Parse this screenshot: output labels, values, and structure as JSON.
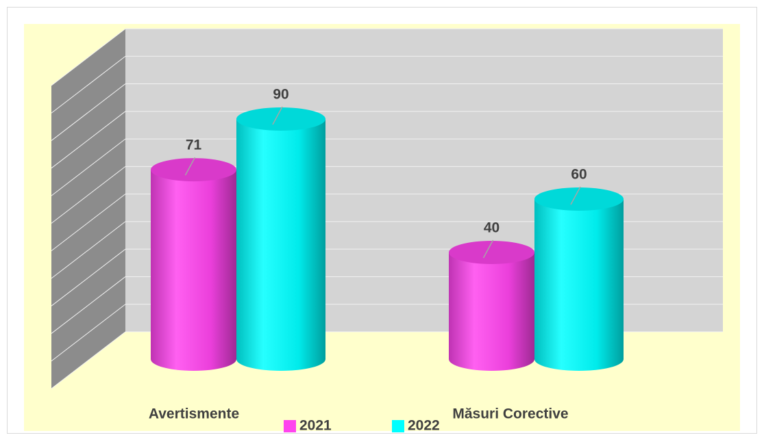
{
  "chart_data": {
    "type": "bar3d-cylinder",
    "categories": [
      "Avertismente",
      "Măsuri Corective"
    ],
    "series": [
      {
        "name": "2021",
        "color": "#ff44ee",
        "values": [
          71,
          40
        ]
      },
      {
        "name": "2022",
        "color": "#00ffff",
        "values": [
          90,
          60
        ]
      }
    ],
    "ylim": [
      0,
      110
    ],
    "yticks": [
      0,
      10,
      20,
      30,
      40,
      50,
      60,
      70,
      80,
      90,
      100,
      110
    ],
    "grid": true
  }
}
